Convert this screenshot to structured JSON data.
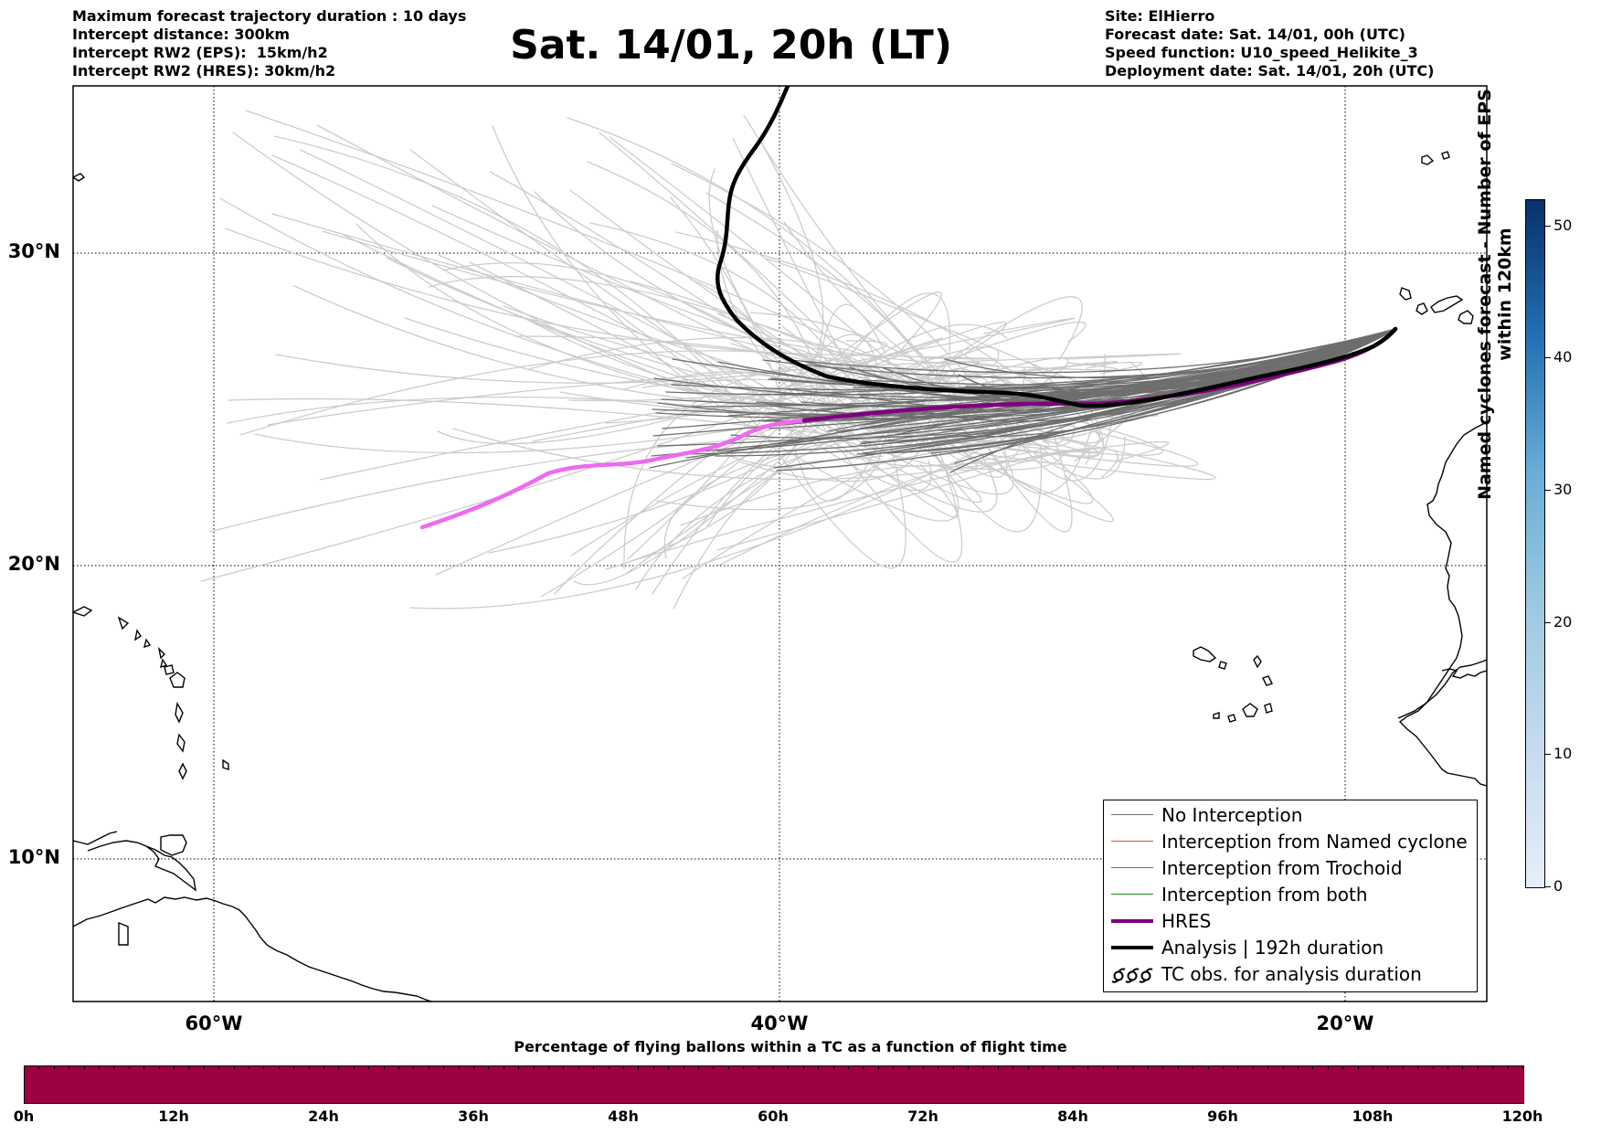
{
  "header": {
    "title": "Sat. 14/01, 20h (LT)",
    "left_lines": [
      "Maximum forecast trajectory duration : 10 days",
      "Intercept distance: 300km",
      "Intercept RW2 (EPS):  15km/h2",
      "Intercept RW2 (HRES): 30km/h2"
    ],
    "right_lines": [
      "Site: ElHierro",
      "Forecast date: Sat. 14/01, 00h (UTC)",
      "Speed function: U10_speed_Helikite_3",
      "Deployment date: Sat. 14/01, 20h (UTC)"
    ]
  },
  "map": {
    "lon_range": [
      -65,
      -15
    ],
    "lat_range": [
      5,
      35
    ],
    "lat_labels": [
      "30°N",
      "20°N",
      "10°N"
    ],
    "lon_labels": [
      "60°W",
      "40°W",
      "20°W"
    ],
    "colors": {
      "ensemble_far": "#cccccc",
      "ensemble_near": "#6e6e6e",
      "hres": "#800080",
      "hres_extended": "#ee6aee",
      "analysis": "#000000"
    }
  },
  "legend": {
    "items": [
      {
        "label": "No Interception",
        "color": "#6e6e6e",
        "style": "line"
      },
      {
        "label": "Interception from Named cyclone",
        "color": "#e8501e",
        "style": "line"
      },
      {
        "label": "Interception from Trochoid",
        "color": "#7a7a10",
        "style": "line"
      },
      {
        "label": "Interception from both",
        "color": "#1a8a1a",
        "style": "line"
      },
      {
        "label": "HRES",
        "color": "#800080",
        "style": "thick"
      },
      {
        "label": "Analysis | 192h duration",
        "color": "#000000",
        "style": "thick"
      },
      {
        "label": "TC obs. for analysis duration",
        "color": "#000000",
        "style": "symbol"
      }
    ]
  },
  "colorbar": {
    "label": "Named cyclones forecast - Number of EPS within 120km",
    "ticks": [
      "0",
      "10",
      "20",
      "30",
      "40",
      "50"
    ],
    "max": 52
  },
  "time_bar": {
    "title": "Percentage of flying ballons within a TC as a function of flight time",
    "labels": [
      "0h",
      "12h",
      "24h",
      "36h",
      "48h",
      "60h",
      "72h",
      "84h",
      "96h",
      "108h",
      "120h"
    ],
    "color": "#9e0142"
  }
}
